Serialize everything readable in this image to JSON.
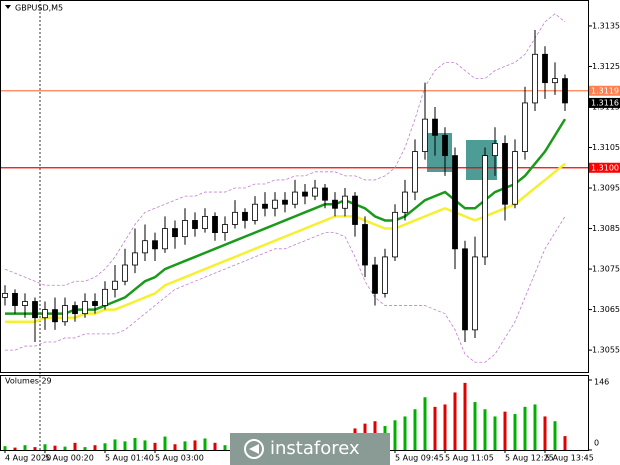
{
  "chart_data": {
    "type": "candlestick",
    "title": "GBPUSD,M5",
    "categories": [
      "4 Aug 2020",
      null,
      null,
      null,
      "5 Aug 00:20",
      null,
      null,
      null,
      null,
      null,
      "5 Aug 01:40",
      null,
      null,
      null,
      null,
      "5 Aug 03:00",
      null,
      null,
      null,
      null,
      null,
      null,
      null,
      null,
      null,
      null,
      null,
      null,
      null,
      null,
      null,
      null,
      null,
      null,
      null,
      null,
      null,
      null,
      null,
      "5 Aug 09:45",
      null,
      null,
      null,
      null,
      "5 Aug 11:05",
      null,
      null,
      null,
      null,
      null,
      "5 Aug 12:25",
      null,
      null,
      null,
      "5 Aug 13:45",
      null,
      null
    ],
    "open": [
      1.3068,
      1.3069,
      1.3066,
      1.3067,
      1.3063,
      1.3065,
      1.3062,
      1.3066,
      1.3064,
      1.3067,
      1.3066,
      1.307,
      1.3072,
      1.3076,
      1.3079,
      1.3082,
      1.308,
      1.3085,
      1.3083,
      1.3087,
      1.3085,
      1.3088,
      1.3084,
      1.3086,
      1.3089,
      1.3087,
      1.3091,
      1.309,
      1.3092,
      1.3091,
      1.3094,
      1.3093,
      1.3095,
      1.3092,
      1.309,
      1.3093,
      1.3086,
      1.3076,
      1.3069,
      1.3078,
      1.3089,
      1.3094,
      1.3104,
      1.3112,
      1.3108,
      1.3103,
      1.308,
      1.306,
      1.3078,
      1.3103,
      1.3106,
      1.3091,
      1.3104,
      1.3116,
      1.3128,
      1.3121,
      1.3122
    ],
    "high": [
      1.3071,
      1.307,
      1.3069,
      1.3068,
      1.3067,
      1.3068,
      1.3068,
      1.3067,
      1.3069,
      1.3069,
      1.3072,
      1.3076,
      1.308,
      1.3085,
      1.3086,
      1.3084,
      1.3088,
      1.3087,
      1.309,
      1.3089,
      1.309,
      1.3089,
      1.3088,
      1.3092,
      1.309,
      1.3093,
      1.3094,
      1.3094,
      1.3094,
      1.3097,
      1.3096,
      1.3097,
      1.3096,
      1.3094,
      1.3095,
      1.3094,
      1.3088,
      1.3078,
      1.308,
      1.3091,
      1.3097,
      1.3107,
      1.3121,
      1.3115,
      1.311,
      1.3105,
      1.3082,
      1.3083,
      1.3105,
      1.311,
      1.3108,
      1.3107,
      1.312,
      1.3134,
      1.313,
      1.3126,
      1.3123
    ],
    "low": [
      1.3066,
      1.3064,
      1.3063,
      1.3057,
      1.306,
      1.306,
      1.3061,
      1.3062,
      1.3063,
      1.3064,
      1.3065,
      1.3068,
      1.3071,
      1.3074,
      1.3077,
      1.3077,
      1.3079,
      1.308,
      1.3081,
      1.3083,
      1.3084,
      1.3082,
      1.3082,
      1.3085,
      1.3085,
      1.3086,
      1.3088,
      1.3088,
      1.3089,
      1.309,
      1.3091,
      1.3092,
      1.309,
      1.3088,
      1.3088,
      1.3083,
      1.3073,
      1.3066,
      1.3068,
      1.3077,
      1.3087,
      1.3092,
      1.3102,
      1.3103,
      1.3098,
      1.3075,
      1.3057,
      1.3058,
      1.3076,
      1.3098,
      1.3087,
      1.309,
      1.3102,
      1.3114,
      1.3117,
      1.3118,
      1.3114
    ],
    "close": [
      1.3069,
      1.3066,
      1.3067,
      1.3063,
      1.3065,
      1.3062,
      1.3066,
      1.3064,
      1.3067,
      1.3066,
      1.307,
      1.3072,
      1.3076,
      1.3079,
      1.3082,
      1.308,
      1.3085,
      1.3083,
      1.3087,
      1.3085,
      1.3088,
      1.3084,
      1.3086,
      1.3089,
      1.3087,
      1.3091,
      1.309,
      1.3092,
      1.3091,
      1.3094,
      1.3093,
      1.3095,
      1.3092,
      1.309,
      1.3093,
      1.3086,
      1.3076,
      1.3069,
      1.3078,
      1.3089,
      1.3094,
      1.3104,
      1.3112,
      1.3108,
      1.3103,
      1.308,
      1.306,
      1.3078,
      1.3103,
      1.3106,
      1.3091,
      1.3104,
      1.3116,
      1.3128,
      1.3121,
      1.3122,
      1.3116
    ],
    "candle_color": "#000000",
    "up_fill": "#ffffff",
    "overlays": [
      {
        "color": "#c080d0",
        "style": "dashed",
        "values": [
          1.3075,
          1.3074,
          1.3073,
          1.3072,
          1.3071,
          1.3071,
          1.3071,
          1.3072,
          1.3072,
          1.3073,
          1.3075,
          1.3078,
          1.3082,
          1.3086,
          1.3089,
          1.309,
          1.3091,
          1.3092,
          1.3093,
          1.3093,
          1.3094,
          1.3094,
          1.3094,
          1.3095,
          1.3095,
          1.3096,
          1.3096,
          1.3097,
          1.3097,
          1.3098,
          1.3098,
          1.3099,
          1.3099,
          1.3099,
          1.3098,
          1.3098,
          1.3097,
          1.3097,
          1.3098,
          1.31,
          1.3105,
          1.3112,
          1.312,
          1.3124,
          1.3126,
          1.3126,
          1.3124,
          1.3122,
          1.3122,
          1.3124,
          1.3125,
          1.3126,
          1.3128,
          1.3132,
          1.3136,
          1.3138,
          1.3136
        ]
      },
      {
        "color": "#c080d0",
        "style": "dashed",
        "values": [
          1.3055,
          1.3055,
          1.3056,
          1.3056,
          1.3057,
          1.3057,
          1.3058,
          1.3058,
          1.3059,
          1.3059,
          1.3059,
          1.3059,
          1.306,
          1.3062,
          1.3064,
          1.3066,
          1.3068,
          1.307,
          1.3071,
          1.3072,
          1.3073,
          1.3074,
          1.3075,
          1.3076,
          1.3077,
          1.3078,
          1.3079,
          1.308,
          1.308,
          1.3081,
          1.3082,
          1.3083,
          1.3084,
          1.3084,
          1.3083,
          1.3078,
          1.3072,
          1.3068,
          1.3066,
          1.3066,
          1.3066,
          1.3066,
          1.3066,
          1.3065,
          1.3064,
          1.306,
          1.3054,
          1.3052,
          1.3052,
          1.3054,
          1.3058,
          1.3062,
          1.3068,
          1.3074,
          1.308,
          1.3084,
          1.3088
        ]
      },
      {
        "color": "#f5f032",
        "style": "solid",
        "values": [
          1.3062,
          1.3062,
          1.3062,
          1.3062,
          1.3063,
          1.3063,
          1.3063,
          1.3063,
          1.3064,
          1.3064,
          1.3065,
          1.3065,
          1.3066,
          1.3067,
          1.3068,
          1.3069,
          1.3071,
          1.3072,
          1.3073,
          1.3074,
          1.3075,
          1.3076,
          1.3077,
          1.3078,
          1.3079,
          1.308,
          1.3081,
          1.3082,
          1.3083,
          1.3084,
          1.3085,
          1.3086,
          1.3087,
          1.3088,
          1.3088,
          1.3088,
          1.3087,
          1.3086,
          1.3085,
          1.3085,
          1.3086,
          1.3087,
          1.3088,
          1.3089,
          1.309,
          1.3089,
          1.3088,
          1.3087,
          1.3088,
          1.3089,
          1.309,
          1.3091,
          1.3093,
          1.3095,
          1.3097,
          1.3099,
          1.3101
        ]
      },
      {
        "color": "#1a9a1a",
        "style": "solid",
        "values": [
          1.3064,
          1.3064,
          1.3064,
          1.3064,
          1.3064,
          1.3064,
          1.3064,
          1.3065,
          1.3065,
          1.3065,
          1.3066,
          1.3067,
          1.3068,
          1.307,
          1.3072,
          1.3073,
          1.3075,
          1.3076,
          1.3077,
          1.3078,
          1.3079,
          1.308,
          1.3081,
          1.3082,
          1.3083,
          1.3084,
          1.3085,
          1.3086,
          1.3087,
          1.3088,
          1.3089,
          1.309,
          1.3091,
          1.3091,
          1.3092,
          1.3091,
          1.309,
          1.3088,
          1.3087,
          1.3087,
          1.3088,
          1.309,
          1.3092,
          1.3093,
          1.3094,
          1.3092,
          1.309,
          1.309,
          1.3092,
          1.3094,
          1.3095,
          1.3096,
          1.3098,
          1.3101,
          1.3104,
          1.3108,
          1.3112
        ]
      }
    ],
    "levels": [
      {
        "value": 1.3119,
        "label": "1.3119",
        "color": "#ff7f50"
      },
      {
        "value": 1.31,
        "label": "1.3100",
        "color": "#ff0000"
      }
    ],
    "ylim": [
      1.30496,
      1.31414
    ],
    "yticks": [
      1.3055,
      1.3065,
      1.3075,
      1.3085,
      1.3095,
      1.3105,
      1.3115,
      1.3125,
      1.3135
    ],
    "volume_title": "Volumes 29",
    "volumes": [
      8,
      5,
      10,
      6,
      12,
      9,
      7,
      15,
      6,
      10,
      14,
      22,
      18,
      25,
      20,
      15,
      28,
      12,
      18,
      20,
      24,
      15,
      10,
      16,
      22,
      14,
      18,
      12,
      20,
      16,
      22,
      18,
      25,
      30,
      20,
      45,
      55,
      60,
      50,
      62,
      70,
      85,
      110,
      90,
      95,
      120,
      140,
      100,
      85,
      70,
      80,
      75,
      90,
      95,
      70,
      60,
      29
    ],
    "volume_up_color": "#00b000",
    "volume_down_color": "#e00000",
    "volume_ylim": [
      0,
      146
    ],
    "volume_yticks": [
      0,
      146
    ]
  },
  "watermark": "instaforex"
}
